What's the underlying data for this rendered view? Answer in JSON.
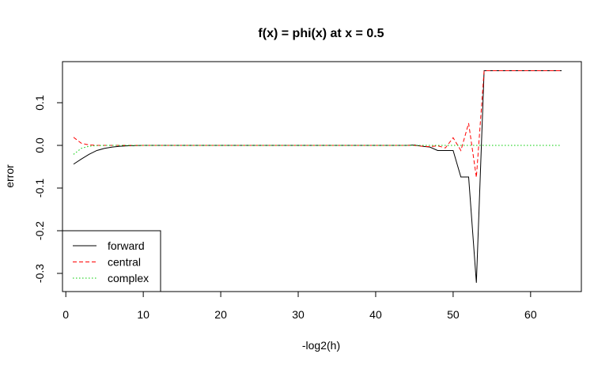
{
  "chart_data": {
    "type": "line",
    "title": "f(x) = phi(x) at x = 0.5",
    "xlabel": "-log2(h)",
    "ylabel": "error",
    "xlim": [
      1,
      64
    ],
    "ylim": [
      -0.34,
      0.175
    ],
    "xticks": [
      0,
      10,
      20,
      30,
      40,
      50,
      60
    ],
    "yticks": [
      -0.3,
      -0.2,
      -0.1,
      0.0,
      0.1
    ],
    "ytick_labels": [
      "-0.3",
      "-0.2",
      "-0.1",
      "0.0",
      "0.1"
    ],
    "grid": false,
    "legend_position": "bottom-left",
    "series": [
      {
        "name": "forward",
        "color": "#000000",
        "dash": "solid",
        "x": [
          1,
          2,
          3,
          4,
          5,
          6,
          7,
          8,
          9,
          10,
          44,
          45,
          46,
          47,
          48,
          49,
          50,
          51,
          52,
          53,
          54,
          55,
          64
        ],
        "y": [
          -0.044,
          -0.032,
          -0.021,
          -0.012,
          -0.007,
          -0.004,
          -0.002,
          -0.001,
          -0.0005,
          0,
          0,
          0.001,
          -0.002,
          -0.004,
          -0.012,
          -0.012,
          -0.012,
          -0.074,
          -0.074,
          -0.322,
          0.175,
          0.175,
          0.175
        ]
      },
      {
        "name": "central",
        "color": "#ff0000",
        "dash": "dashed",
        "x": [
          1,
          2,
          3,
          4,
          5,
          44,
          45,
          46,
          47,
          48,
          49,
          50,
          51,
          52,
          53,
          54,
          55,
          64
        ],
        "y": [
          0.019,
          0.005,
          0.001,
          0.0002,
          0,
          0,
          0,
          -0.002,
          -0.003,
          -0.001,
          -0.006,
          0.018,
          -0.012,
          0.052,
          -0.075,
          0.175,
          0.175,
          0.175
        ]
      },
      {
        "name": "complex",
        "color": "#00cc00",
        "dash": "dotted",
        "x": [
          1,
          2,
          3,
          4,
          5,
          6,
          64
        ],
        "y": [
          -0.021,
          -0.007,
          -0.002,
          -0.0005,
          -0.0001,
          0,
          0
        ]
      }
    ]
  }
}
